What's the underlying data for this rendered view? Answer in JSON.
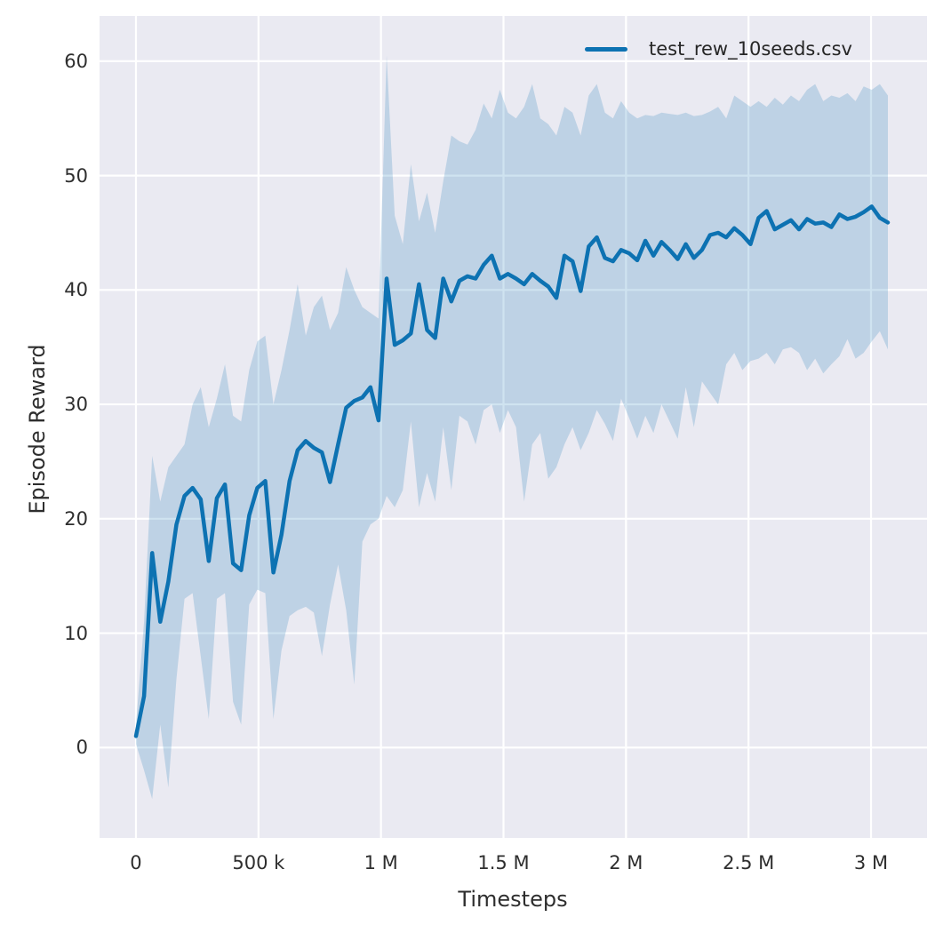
{
  "chart_data": {
    "type": "line",
    "title": "",
    "xlabel": "Timesteps",
    "ylabel": "Episode Reward",
    "grid": true,
    "legend_position": "upper right",
    "xlim": [
      -148700,
      3228500
    ],
    "ylim": [
      -7.9,
      63.95
    ],
    "x_ticks": {
      "values": [
        0,
        500000,
        1000000,
        1500000,
        2000000,
        2500000,
        3000000
      ],
      "labels": [
        "0",
        "500 k",
        "1 M",
        "1.5 M",
        "2 M",
        "2.5 M",
        "3 M"
      ]
    },
    "y_ticks": {
      "values": [
        0,
        10,
        20,
        30,
        40,
        50,
        60
      ],
      "labels": [
        "0",
        "10",
        "20",
        "30",
        "40",
        "50",
        "60"
      ]
    },
    "colors": {
      "line": "#0d72b2",
      "band": "rgba(13,114,178,0.2)",
      "axes_background": "#eaeaf2",
      "gridline": "#ffffff",
      "text": "#262626"
    },
    "series": [
      {
        "name": "test_rew_10seeds.csv",
        "x": [
          0,
          33000,
          66000,
          99000,
          132000,
          165000,
          198000,
          231000,
          264000,
          297000,
          330000,
          363000,
          396000,
          429000,
          462000,
          495000,
          528000,
          561000,
          594000,
          627000,
          660000,
          693000,
          726000,
          759000,
          792000,
          825000,
          858000,
          891000,
          924000,
          957000,
          990000,
          1023000,
          1056000,
          1089000,
          1122000,
          1155000,
          1188000,
          1221000,
          1254000,
          1287000,
          1320000,
          1353000,
          1386000,
          1419000,
          1452000,
          1485000,
          1518000,
          1551000,
          1584000,
          1617000,
          1650000,
          1683000,
          1716000,
          1749000,
          1782000,
          1815000,
          1848000,
          1881000,
          1914000,
          1947000,
          1980000,
          2013000,
          2046000,
          2079000,
          2112000,
          2145000,
          2178000,
          2211000,
          2244000,
          2277000,
          2310000,
          2343000,
          2376000,
          2409000,
          2442000,
          2475000,
          2508000,
          2541000,
          2574000,
          2607000,
          2640000,
          2673000,
          2706000,
          2739000,
          2772000,
          2805000,
          2838000,
          2871000,
          2904000,
          2937000,
          2970000,
          3003000,
          3036000,
          3069000
        ],
        "mean": [
          1.0,
          4.5,
          17.0,
          11.0,
          14.5,
          19.5,
          22.0,
          22.7,
          21.7,
          16.3,
          21.8,
          23.0,
          16.1,
          15.5,
          20.3,
          22.7,
          23.3,
          15.3,
          18.6,
          23.3,
          26.0,
          26.8,
          26.2,
          25.8,
          23.2,
          26.5,
          29.7,
          30.3,
          30.6,
          31.5,
          28.6,
          41.0,
          35.2,
          35.6,
          36.2,
          40.5,
          36.5,
          35.8,
          41.0,
          39.0,
          40.8,
          41.2,
          41.0,
          42.2,
          43.0,
          41.0,
          41.4,
          41.0,
          40.5,
          41.4,
          40.8,
          40.3,
          39.3,
          43.0,
          42.5,
          39.9,
          43.8,
          44.6,
          42.8,
          42.5,
          43.5,
          43.2,
          42.6,
          44.3,
          43.0,
          44.2,
          43.5,
          42.7,
          44.0,
          42.8,
          43.5,
          44.8,
          45.0,
          44.6,
          45.4,
          44.8,
          44.0,
          46.3,
          46.9,
          45.3,
          45.7,
          46.1,
          45.3,
          46.2,
          45.8,
          45.9,
          45.5,
          46.6,
          46.2,
          46.4,
          46.8,
          47.3,
          46.3,
          45.9
        ],
        "lower": [
          0.3,
          -2.0,
          -4.5,
          2.0,
          -3.5,
          6.0,
          13.0,
          13.5,
          8.0,
          2.5,
          13.0,
          13.5,
          4.0,
          2.0,
          12.5,
          13.8,
          13.5,
          2.5,
          8.5,
          11.5,
          12.0,
          12.3,
          11.8,
          8.0,
          12.5,
          16.0,
          12.0,
          5.5,
          18.0,
          19.5,
          20.0,
          22.0,
          21.0,
          22.5,
          28.5,
          21.0,
          24.0,
          21.5,
          28.0,
          22.5,
          29.0,
          28.5,
          26.5,
          29.5,
          30.0,
          27.5,
          29.5,
          28.0,
          21.5,
          26.5,
          27.5,
          23.5,
          24.5,
          26.5,
          28.0,
          26.0,
          27.5,
          29.5,
          28.3,
          26.8,
          30.5,
          28.8,
          27.0,
          29.0,
          27.5,
          30.0,
          28.5,
          27.0,
          31.5,
          28.0,
          32.0,
          31.0,
          30.0,
          33.5,
          34.5,
          33.0,
          33.8,
          34.0,
          34.5,
          33.5,
          34.8,
          35.0,
          34.5,
          33.0,
          34.0,
          32.7,
          33.5,
          34.2,
          35.7,
          34.0,
          34.5,
          35.5,
          36.4,
          34.8
        ],
        "upper": [
          2.0,
          11.0,
          25.5,
          21.5,
          24.5,
          25.5,
          26.5,
          30.0,
          31.5,
          28.0,
          30.5,
          33.5,
          29.0,
          28.5,
          33.0,
          35.5,
          36.0,
          30.0,
          33.0,
          36.5,
          40.5,
          36.0,
          38.5,
          39.5,
          36.5,
          38.0,
          42.0,
          40.0,
          38.5,
          38.0,
          37.5,
          60.5,
          46.5,
          44.0,
          51.0,
          46.0,
          48.5,
          45.0,
          49.5,
          53.5,
          53.0,
          52.7,
          54.0,
          56.3,
          55.0,
          57.5,
          55.5,
          55.0,
          56.0,
          58.0,
          55.0,
          54.5,
          53.5,
          56.0,
          55.5,
          53.5,
          57.0,
          58.0,
          55.5,
          55.0,
          56.5,
          55.5,
          55.0,
          55.3,
          55.2,
          55.5,
          55.4,
          55.3,
          55.5,
          55.2,
          55.3,
          55.6,
          56.0,
          55.0,
          57.0,
          56.5,
          56.0,
          56.5,
          56.0,
          56.8,
          56.2,
          57.0,
          56.5,
          57.5,
          58.0,
          56.5,
          57.0,
          56.8,
          57.2,
          56.5,
          57.8,
          57.5,
          58.0,
          57.0
        ]
      }
    ],
    "legend": [
      {
        "label": "test_rew_10seeds.csv",
        "color": "#0d72b2"
      }
    ]
  }
}
